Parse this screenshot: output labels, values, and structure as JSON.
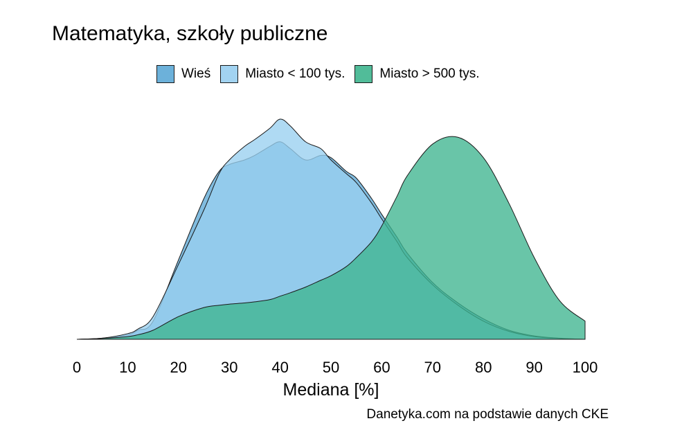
{
  "chart_data": {
    "type": "area",
    "title": "Matematyka, szkoły publiczne",
    "xlabel": "Mediana [%]",
    "ylabel": "",
    "caption": "Danetyka.com na podstawie danych CKE",
    "xlim": [
      0,
      100
    ],
    "xticks": [
      "0",
      "10",
      "20",
      "30",
      "40",
      "50",
      "60",
      "70",
      "80",
      "90",
      "100"
    ],
    "legend_position": "top",
    "grid": false,
    "x": [
      0,
      5,
      10,
      12,
      15,
      20,
      25,
      28,
      30,
      33,
      35,
      38,
      40,
      42,
      45,
      48,
      50,
      53,
      55,
      58,
      60,
      63,
      65,
      70,
      75,
      80,
      85,
      90,
      95,
      100
    ],
    "series": [
      {
        "name": "Wieś",
        "color": "#5DA9D6",
        "values": [
          0,
          0.005,
          0.02,
          0.04,
          0.08,
          0.35,
          0.62,
          0.74,
          0.77,
          0.79,
          0.81,
          0.85,
          0.87,
          0.84,
          0.79,
          0.81,
          0.8,
          0.74,
          0.71,
          0.62,
          0.55,
          0.45,
          0.38,
          0.25,
          0.16,
          0.09,
          0.04,
          0.015,
          0.005,
          0
        ]
      },
      {
        "name": "Miasto < 100 tys.",
        "color": "#98CFF0",
        "values": [
          0,
          0.005,
          0.025,
          0.045,
          0.1,
          0.33,
          0.57,
          0.73,
          0.79,
          0.85,
          0.88,
          0.93,
          0.97,
          0.94,
          0.87,
          0.84,
          0.79,
          0.73,
          0.69,
          0.6,
          0.53,
          0.43,
          0.36,
          0.24,
          0.15,
          0.08,
          0.035,
          0.012,
          0.004,
          0
        ]
      },
      {
        "name": "Miasto > 500 tys.",
        "color": "#3FB58F",
        "values": [
          0,
          0.004,
          0.012,
          0.02,
          0.04,
          0.1,
          0.14,
          0.15,
          0.155,
          0.16,
          0.165,
          0.175,
          0.19,
          0.205,
          0.23,
          0.26,
          0.28,
          0.32,
          0.36,
          0.43,
          0.5,
          0.63,
          0.72,
          0.86,
          0.89,
          0.8,
          0.6,
          0.36,
          0.17,
          0.08
        ]
      }
    ]
  }
}
